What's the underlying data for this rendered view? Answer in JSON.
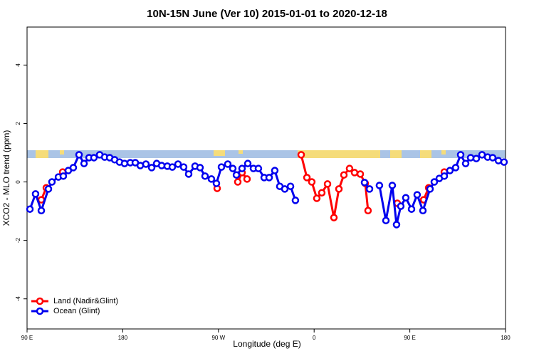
{
  "chart_data": {
    "type": "line",
    "title": "10N-15N June (Ver 10)   2015-01-01 to 2020-12-18",
    "x_label": "Longitude (deg E)",
    "y_label": "XCO2 - MLO trend (ppm)",
    "xlim": [
      90,
      540
    ],
    "xticks": [
      {
        "value": 90,
        "label": "90 E"
      },
      180,
      {
        "value": 270,
        "label": "90 W"
      },
      {
        "value": 360,
        "label": "0"
      },
      {
        "value": 450,
        "label": "90 E"
      },
      {
        "value": 540,
        "label": "180"
      }
    ],
    "ylim": [
      -5.03,
      5.3
    ],
    "yticks": [
      -4,
      -2,
      0,
      2,
      4
    ],
    "legend": "bottom-left",
    "series": [
      {
        "name": "Land (Nadir&Glint)",
        "color": "#ff0000",
        "x": [
          103.4,
          108.1,
          null,
          123.5,
          null,
          268.8,
          null,
          288.2,
          292.2,
          296.9,
          null,
          347.8,
          353.2,
          357.8,
          362.5,
          367.2,
          372.6,
          378.6,
          383.3,
          388.0,
          393.3,
          398.0,
          403.4,
          408.1,
          410.7,
          null,
          438.2,
          null,
          463.0,
          467.7,
          null,
          482.4
        ],
        "values": [
          -0.61,
          -0.2,
          null,
          0.34,
          null,
          -0.22,
          null,
          0.0,
          0.32,
          0.1,
          null,
          0.93,
          0.15,
          0.0,
          -0.56,
          -0.37,
          -0.07,
          -1.22,
          -0.24,
          0.24,
          0.46,
          0.32,
          0.27,
          -0.05,
          -0.98,
          null,
          -0.73,
          null,
          -0.61,
          -0.2,
          null,
          0.34
        ]
      },
      {
        "name": "Ocean (Glint)",
        "color": "#0000ee",
        "x": [
          92.7,
          98.0,
          103.4,
          110.1,
          113.4,
          119.5,
          124.1,
          128.8,
          133.5,
          138.9,
          143.6,
          148.3,
          152.9,
          158.3,
          163.0,
          167.7,
          172.4,
          177.0,
          181.7,
          187.1,
          191.8,
          196.5,
          201.8,
          207.2,
          211.9,
          216.6,
          221.9,
          226.6,
          232.0,
          237.3,
          242.0,
          248.0,
          252.7,
          257.4,
          263.4,
          268.1,
          272.8,
          278.8,
          283.5,
          286.9,
          292.2,
          297.6,
          302.9,
          307.6,
          313.0,
          317.7,
          323.0,
          327.7,
          332.4,
          337.8,
          342.4,
          null,
          407.4,
          412.1,
          null,
          421.4,
          427.5,
          433.5,
          437.5,
          441.5,
          446.2,
          451.6,
          456.9,
          462.3,
          469.0,
          473.0,
          477.7,
          482.4,
          487.7,
          493.1,
          497.8,
          502.5,
          507.2,
          512.5,
          517.9,
          523.2,
          527.9,
          533.3,
          538.6
        ],
        "values": [
          -0.93,
          -0.41,
          -0.98,
          -0.24,
          0.0,
          0.17,
          0.2,
          0.39,
          0.49,
          0.93,
          0.63,
          0.83,
          0.83,
          0.93,
          0.85,
          0.83,
          0.76,
          0.68,
          0.63,
          0.66,
          0.66,
          0.56,
          0.61,
          0.49,
          0.63,
          0.56,
          0.54,
          0.51,
          0.61,
          0.51,
          0.27,
          0.54,
          0.49,
          0.2,
          0.1,
          -0.05,
          0.51,
          0.61,
          0.46,
          0.24,
          0.46,
          0.63,
          0.46,
          0.46,
          0.15,
          0.15,
          0.39,
          -0.15,
          -0.24,
          -0.15,
          -0.63,
          null,
          -0.02,
          -0.24,
          null,
          -0.12,
          -1.32,
          -0.12,
          -1.46,
          -0.83,
          -0.54,
          -0.93,
          -0.44,
          -0.98,
          -0.24,
          0.0,
          0.12,
          0.2,
          0.39,
          0.49,
          0.93,
          0.63,
          0.83,
          0.8,
          0.93,
          0.85,
          0.83,
          0.73,
          0.68
        ]
      }
    ]
  }
}
